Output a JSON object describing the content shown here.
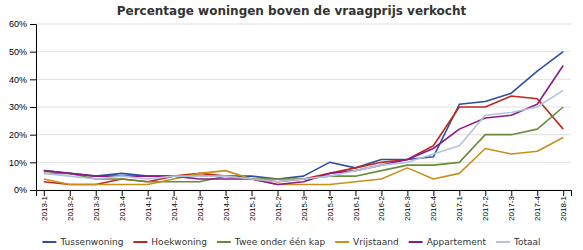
{
  "chart_data": {
    "type": "line",
    "title": "Percentage woningen boven de vraagprijs verkocht",
    "categories": [
      "2013-1",
      "2013-2",
      "2013-3",
      "2013-4",
      "2014-1",
      "2014-2",
      "2014-3",
      "2014-4",
      "2015-1",
      "2015-2",
      "2015-3",
      "2015-4",
      "2016-1",
      "2016-2",
      "2016-3",
      "2016-4",
      "2017-1",
      "2017-2",
      "2017-3",
      "2017-4",
      "2018-1"
    ],
    "series": [
      {
        "name": "Tussenwoning",
        "color": "#2e4f9e",
        "values": [
          7,
          6,
          5,
          6,
          5,
          5,
          5,
          5,
          5,
          4,
          5,
          10,
          8,
          11,
          11,
          12,
          31,
          32,
          35,
          43,
          50
        ]
      },
      {
        "name": "Hoekwoning",
        "color": "#c0281a",
        "values": [
          3,
          2,
          2,
          4,
          3,
          5,
          6,
          5,
          4,
          3,
          4,
          6,
          8,
          10,
          11,
          16,
          30,
          30,
          34,
          33,
          22
        ]
      },
      {
        "name": "Twee onder één kap",
        "color": "#6a8c3a",
        "values": [
          6,
          6,
          4,
          4,
          3,
          3,
          3,
          5,
          4,
          4,
          4,
          5,
          5,
          7,
          9,
          9,
          10,
          20,
          20,
          22,
          30
        ]
      },
      {
        "name": "Vrijstaand",
        "color": "#c8901a",
        "values": [
          4,
          2,
          2,
          2,
          2,
          4,
          6,
          7,
          4,
          2,
          2,
          2,
          3,
          4,
          8,
          4,
          6,
          15,
          13,
          14,
          19
        ]
      },
      {
        "name": "Appartement",
        "color": "#8b1a8b",
        "values": [
          7,
          6,
          5,
          5,
          5,
          5,
          4,
          4,
          4,
          2,
          3,
          6,
          7,
          9,
          11,
          15,
          22,
          26,
          27,
          31,
          45
        ]
      },
      {
        "name": "Totaal",
        "color": "#b0c4de",
        "values": [
          6,
          5,
          4,
          5,
          4,
          5,
          5,
          5,
          4,
          3,
          4,
          5,
          7,
          9,
          10,
          13,
          16,
          27,
          28,
          30,
          36
        ]
      }
    ],
    "ylim": [
      0,
      60
    ],
    "yticks": [
      {
        "value": 0,
        "label": "0%"
      },
      {
        "value": 10,
        "label": "10%"
      },
      {
        "value": 20,
        "label": "20%"
      },
      {
        "value": 30,
        "label": "30%"
      },
      {
        "value": 40,
        "label": "40%"
      },
      {
        "value": 50,
        "label": "50%"
      },
      {
        "value": 60,
        "label": "60%"
      }
    ],
    "grid": true,
    "legend": "bottom"
  }
}
